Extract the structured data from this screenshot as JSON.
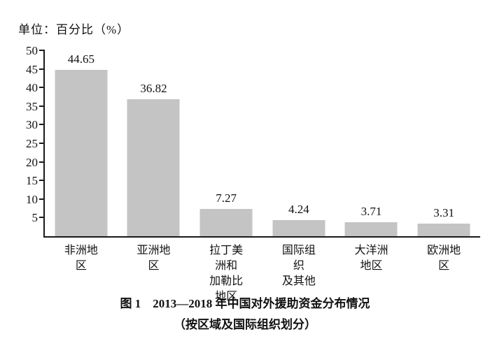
{
  "unit_label": "单位：百分比（%）",
  "caption": {
    "line1": "图 1　2013—2018 年中国对外援助资金分布情况",
    "line2": "（按区域及国际组织划分）"
  },
  "chart_data": {
    "type": "bar",
    "title": "图1 2013—2018年中国对外援助资金分布情况（按区域及国际组织划分）",
    "categories": [
      "非洲地区",
      "亚洲地区",
      "拉丁美洲和\n加勒比地区",
      "国际组织\n及其他",
      "大洋洲地区",
      "欧洲地区"
    ],
    "values": [
      44.65,
      36.82,
      7.27,
      4.24,
      3.71,
      3.31
    ],
    "value_labels": [
      "44.65",
      "36.82",
      "7.27",
      "4.24",
      "3.71",
      "3.31"
    ],
    "xlabel": "",
    "ylabel": "单位：百分比（%）",
    "ylim": [
      0,
      50
    ],
    "ytick_step": 5,
    "ytick_labels": [
      "5",
      "10",
      "15",
      "20",
      "25",
      "30",
      "35",
      "40",
      "45",
      "50"
    ],
    "bar_color": "#c4c4c4",
    "grid": false,
    "legend": "none"
  }
}
